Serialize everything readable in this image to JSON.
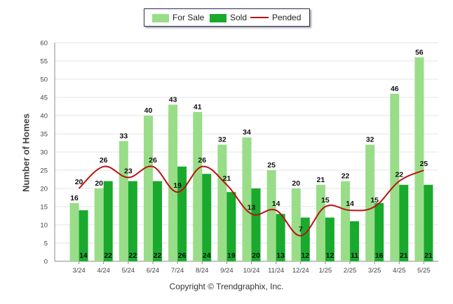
{
  "chart_data": {
    "type": "bar",
    "categories": [
      "3/24",
      "4/24",
      "5/24",
      "6/24",
      "7/24",
      "8/24",
      "9/24",
      "10/24",
      "11/24",
      "12/24",
      "1/25",
      "2/25",
      "3/25",
      "4/25",
      "5/25"
    ],
    "series": [
      {
        "name": "For Sale",
        "type": "bar",
        "color": "#99dd88",
        "values": [
          16,
          20,
          33,
          40,
          43,
          41,
          32,
          34,
          25,
          20,
          21,
          22,
          32,
          46,
          56
        ]
      },
      {
        "name": "Sold",
        "type": "bar",
        "color": "#19aa2d",
        "values": [
          14,
          22,
          22,
          22,
          26,
          24,
          19,
          20,
          13,
          12,
          12,
          11,
          16,
          21,
          21
        ]
      },
      {
        "name": "Pended",
        "type": "line",
        "color": "#bb1111",
        "values": [
          20,
          26,
          23,
          26,
          19,
          26,
          21,
          13,
          14,
          7,
          15,
          14,
          15,
          22,
          25
        ]
      }
    ],
    "ylabel": "Number of Homes",
    "ylim": [
      0,
      60
    ],
    "yticks": [
      0,
      5,
      10,
      15,
      20,
      25,
      30,
      35,
      40,
      45,
      50,
      55,
      60
    ],
    "grid": true,
    "legend_position": "top-center"
  },
  "footer": {
    "copyright": "Copyright © Trendgraphix, Inc."
  }
}
